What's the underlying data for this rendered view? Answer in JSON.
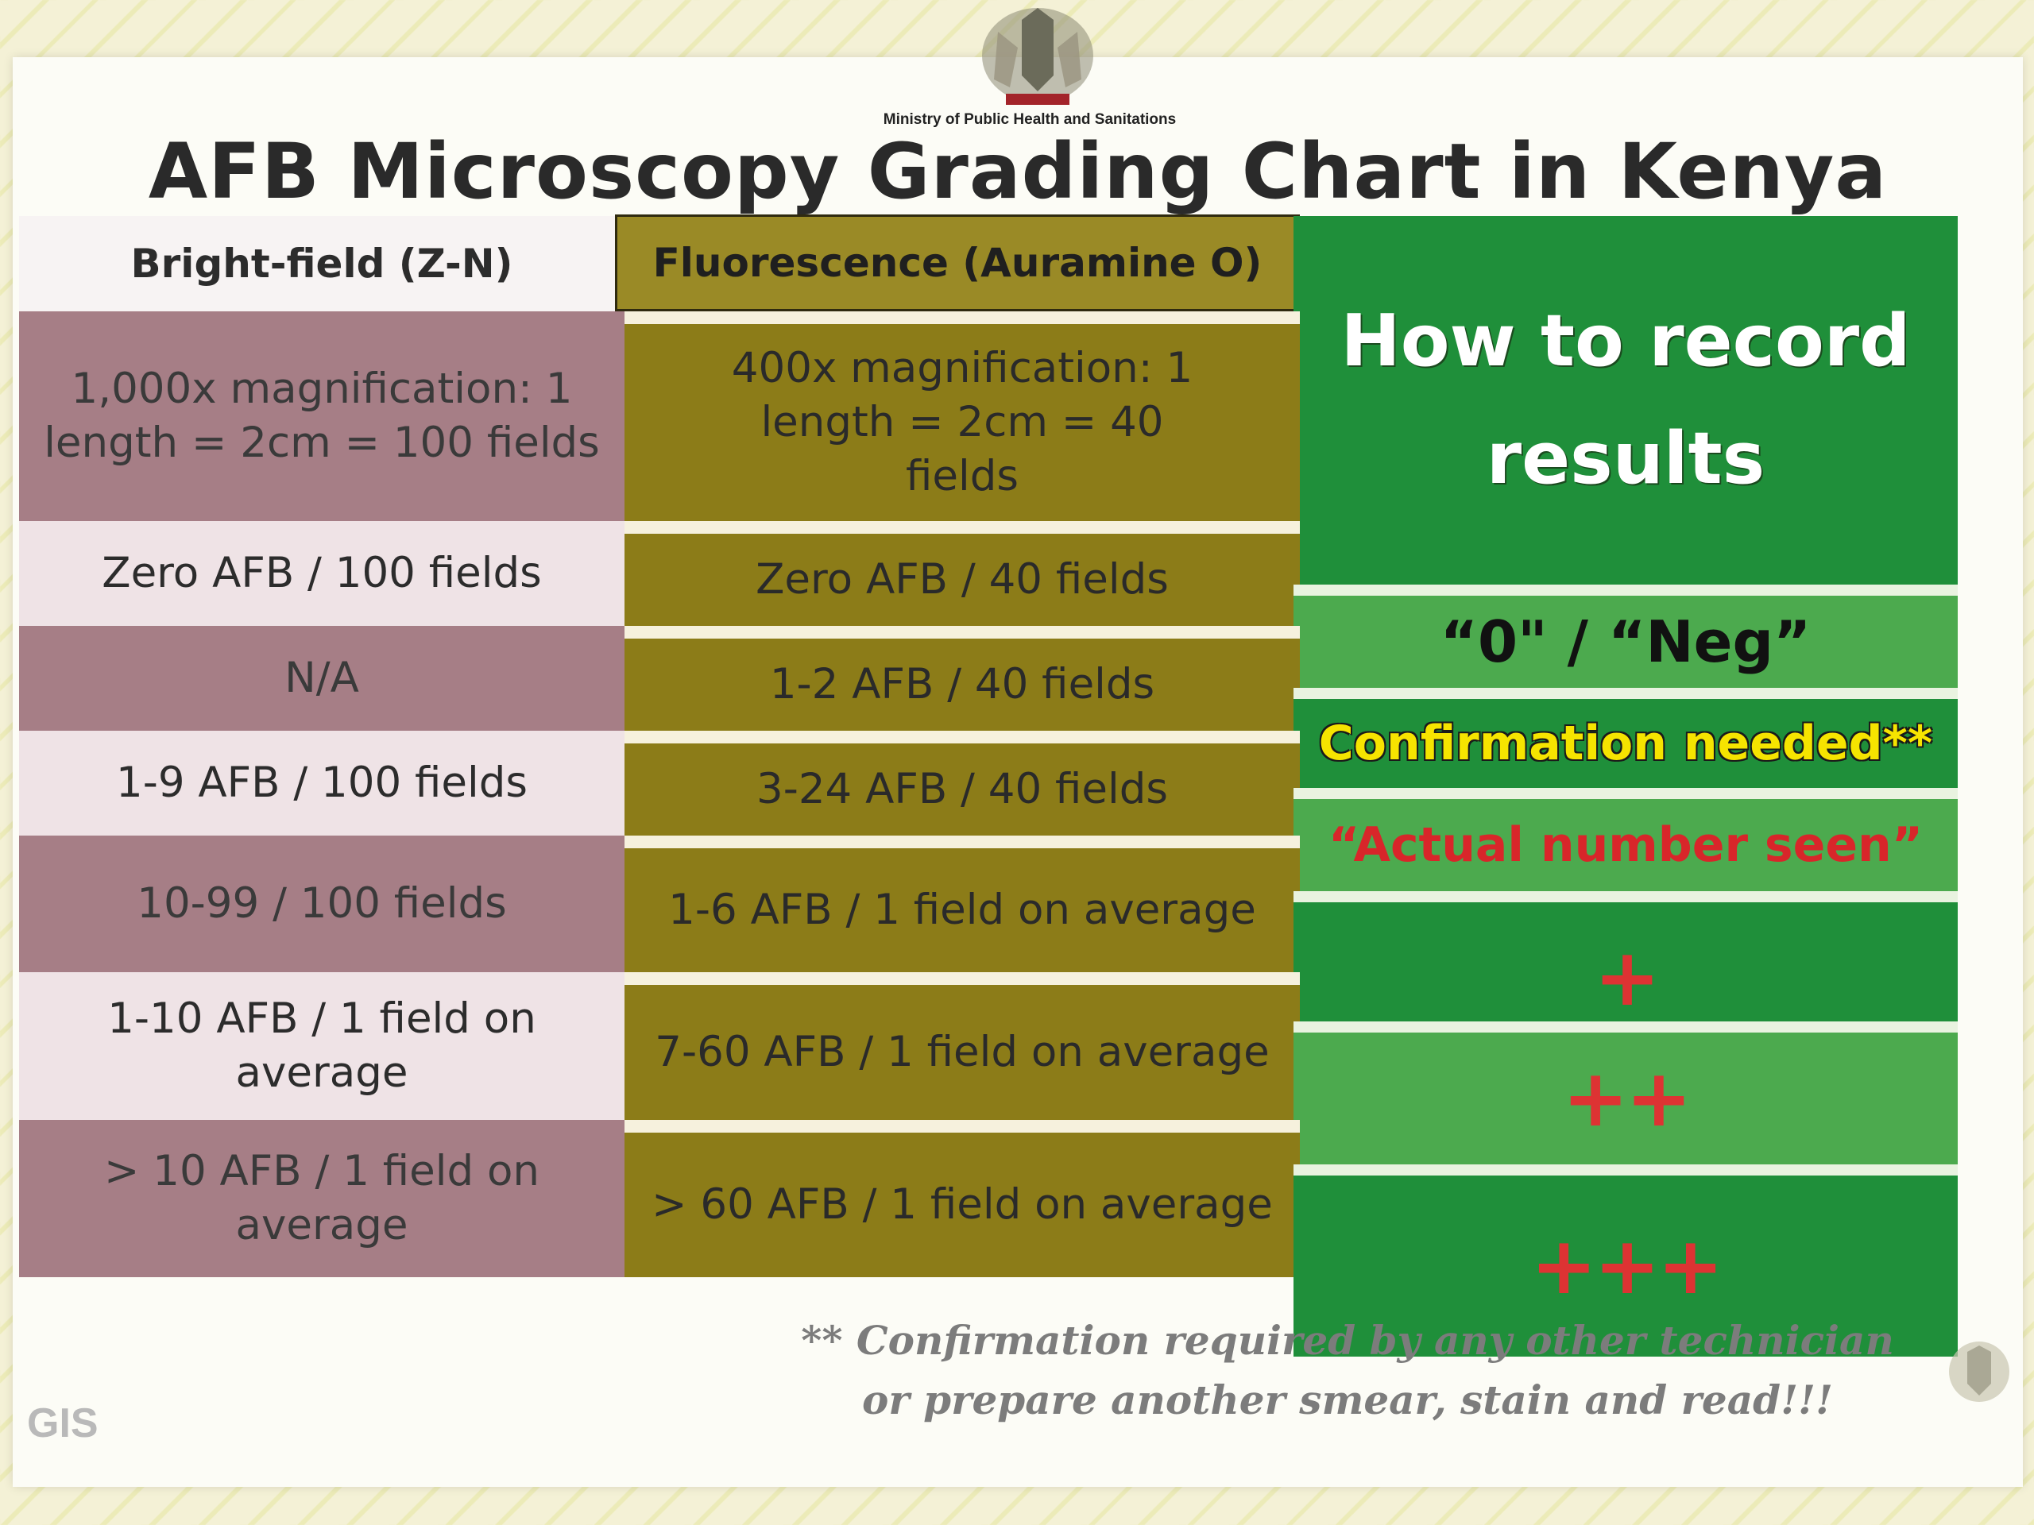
{
  "header": {
    "ministry": "Ministry of Public Health and Sanitations",
    "title": "AFB Microscopy Grading Chart in Kenya"
  },
  "columns": {
    "brightfield": "Bright-field (Z-N)",
    "fluorescence": "Fluorescence (Auramine O)",
    "record": "How to record results"
  },
  "rows": [
    {
      "brightfield": "1,000x magnification: 1 length = 2cm = 100 fields",
      "fluorescence": "400x magnification: 1 length = 2cm = 40 fields"
    },
    {
      "brightfield": "Zero AFB / 100 fields",
      "fluorescence": "Zero AFB / 40 fields",
      "record": "“0\" / “Neg”"
    },
    {
      "brightfield": "N/A",
      "fluorescence": "1-2 AFB / 40 fields",
      "record": "Confirmation needed**"
    },
    {
      "brightfield": "1-9 AFB / 100 fields",
      "fluorescence": "3-24  AFB / 40 fields",
      "record": "“Actual number seen”"
    },
    {
      "brightfield": "10-99 / 100 fields",
      "fluorescence": "1-6 AFB / 1 field on average",
      "record": "+"
    },
    {
      "brightfield": "1-10 AFB / 1 field on average",
      "fluorescence": "7-60 AFB / 1 field on average",
      "record": "++"
    },
    {
      "brightfield": "> 10 AFB / 1 field on average",
      "fluorescence": "> 60 AFB / 1 field on average",
      "record": "+++"
    }
  ],
  "footnote": {
    "line1": "** Confirmation required by any other technician",
    "line2": "or prepare another smear, stain and read!!!"
  },
  "logo": "GIS",
  "colors": {
    "brightfield_dark": "#a67e86",
    "brightfield_light": "#efe3e6",
    "fluorescence": "#8c7c18",
    "record_dark": "#1f8f3a",
    "record_light": "#4caa4e",
    "confirm_text": "#f6e400",
    "red_text": "#d8262a"
  },
  "icons": [
    "coat-of-arms-icon",
    "corner-emblem-icon"
  ]
}
